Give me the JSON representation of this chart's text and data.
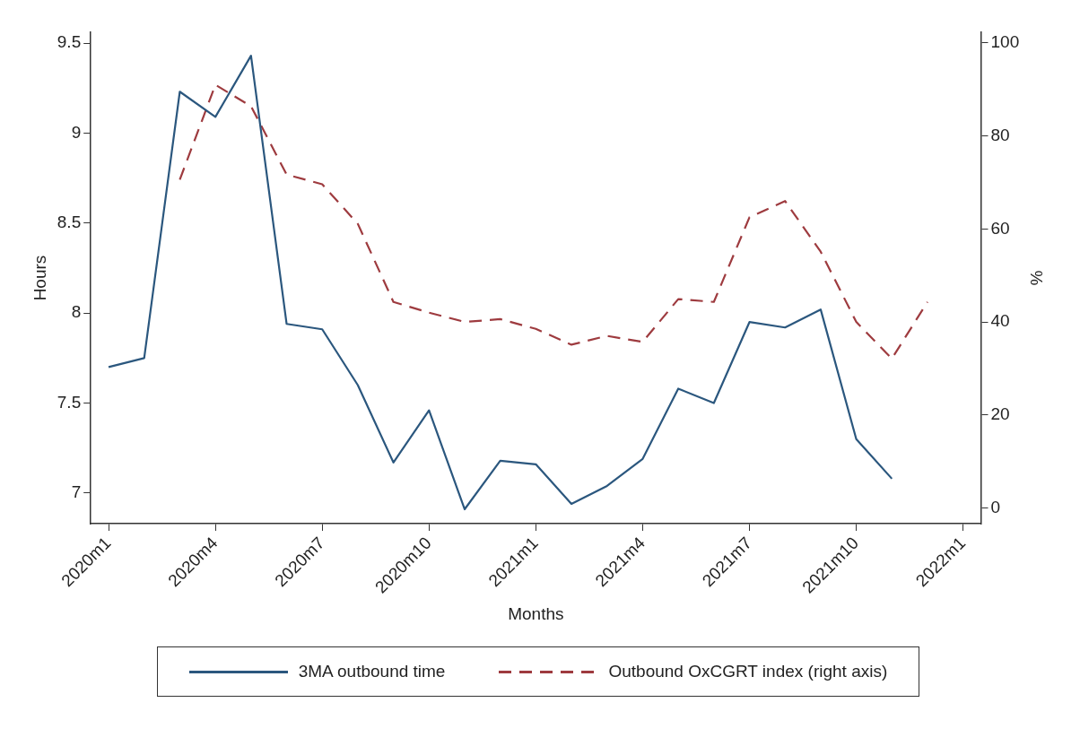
{
  "chart_data": {
    "type": "line",
    "xlabel": "Months",
    "ylabel": "Hours",
    "y2label": "%",
    "categories": [
      "2020m1",
      null,
      null,
      "2020m4",
      null,
      null,
      "2020m7",
      null,
      null,
      "2020m10",
      null,
      null,
      "2021m1",
      null,
      null,
      "2021m4",
      null,
      null,
      "2021m7",
      null,
      null,
      "2021m10",
      null,
      null,
      "2022m1"
    ],
    "series": [
      {
        "name": "3MA outbound time",
        "color": "#2b577e",
        "line_style": "solid",
        "values": [
          7.7,
          7.75,
          9.23,
          9.09,
          9.43,
          7.94,
          7.91,
          7.6,
          7.17,
          7.46,
          6.91,
          7.18,
          7.16,
          6.94,
          7.04,
          7.19,
          7.58,
          7.5,
          7.95,
          7.92,
          8.02,
          7.3,
          7.08,
          null,
          null
        ]
      },
      {
        "name": "Outbound OxCGRT index (right axis)",
        "color": "#9e3b3f",
        "line_style": "dashed",
        "axis": "y2",
        "values": [
          null,
          null,
          70.6,
          91,
          86.4,
          71.7,
          69.6,
          61.1,
          44.3,
          42,
          40,
          40.6,
          38.5,
          35.1,
          37,
          35.7,
          44.9,
          44.3,
          62.5,
          66,
          55.1,
          40,
          32.1,
          44.3,
          null
        ]
      }
    ],
    "ylim": [
      6.83,
      9.56
    ],
    "yticks": [
      7,
      7.5,
      8,
      8.5,
      9,
      9.5
    ],
    "y2lim": [
      -3.4,
      102.3
    ],
    "y2ticks": [
      0,
      20,
      40,
      60,
      80,
      100
    ],
    "grid": false,
    "legend": "bottom",
    "marker": "none"
  }
}
